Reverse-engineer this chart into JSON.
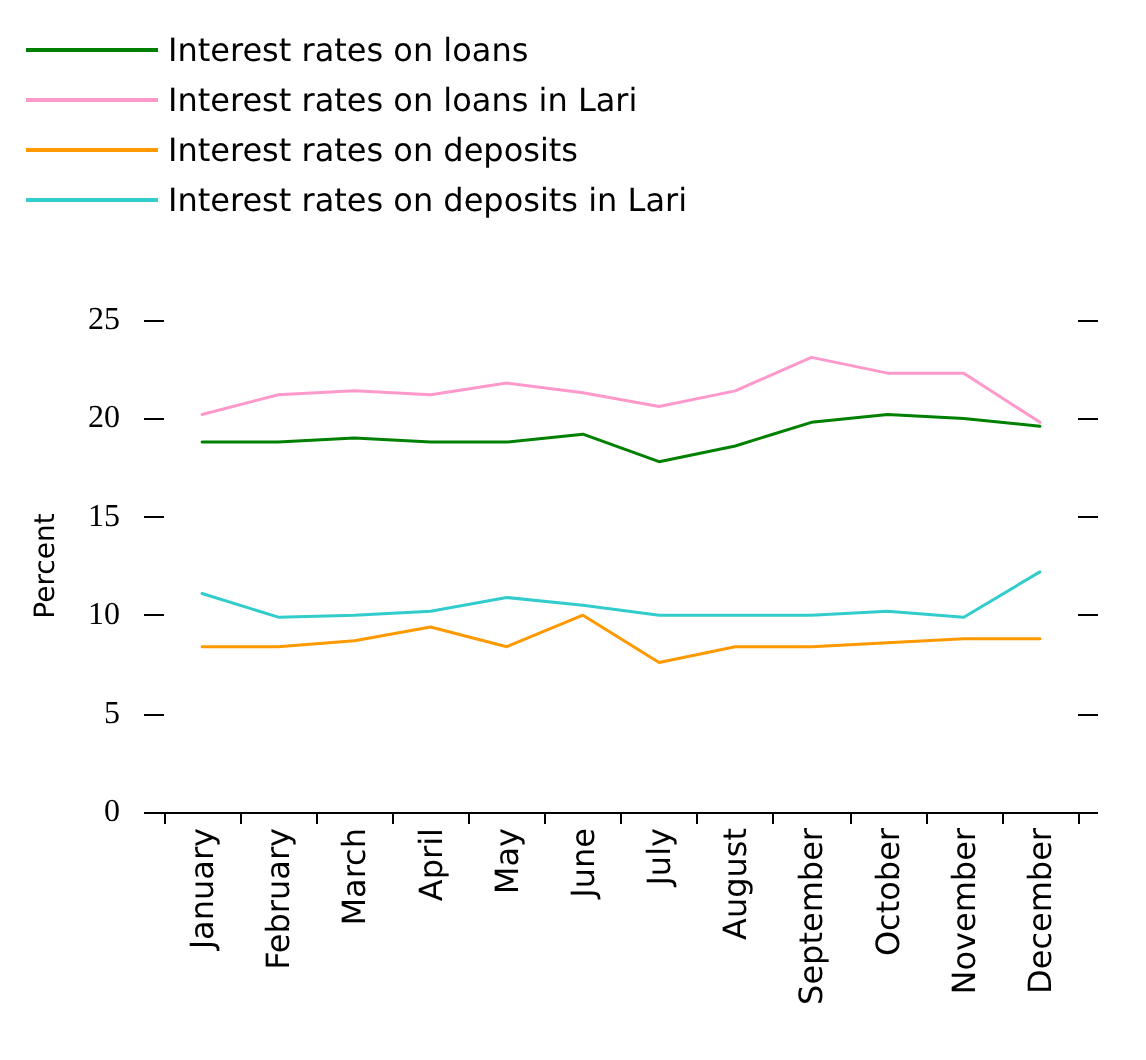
{
  "chart_data": {
    "type": "line",
    "ylabel": "Percent",
    "categories": [
      "January",
      "February",
      "March",
      "April",
      "May",
      "June",
      "July",
      "August",
      "September",
      "October",
      "November",
      "December"
    ],
    "series": [
      {
        "name": "Interest rates on loans",
        "color": "#008000",
        "values": [
          18.8,
          18.8,
          19.0,
          18.8,
          18.8,
          19.2,
          17.8,
          18.6,
          19.8,
          20.2,
          20.0,
          19.6
        ]
      },
      {
        "name": "Interest rates on loans in Lari",
        "color": "#ff99cc",
        "values": [
          20.2,
          21.2,
          21.4,
          21.2,
          21.8,
          21.3,
          20.6,
          21.4,
          23.1,
          22.3,
          22.3,
          19.8
        ]
      },
      {
        "name": "Interest rates on deposits",
        "color": "#ff9900",
        "values": [
          8.4,
          8.4,
          8.7,
          9.4,
          8.4,
          10.0,
          7.6,
          8.4,
          8.4,
          8.6,
          8.8,
          8.8
        ]
      },
      {
        "name": "Interest rates on deposits in Lari",
        "color": "#33cccc",
        "values": [
          11.1,
          9.9,
          10.0,
          10.2,
          10.9,
          10.5,
          10.0,
          10.0,
          10.0,
          10.2,
          9.9,
          12.2
        ]
      }
    ],
    "ylim": [
      0,
      25
    ],
    "yticks": [
      0,
      5,
      10,
      15,
      20,
      25
    ],
    "grid": false,
    "legend": "top left",
    "marker": "none",
    "line_style": "solid"
  }
}
